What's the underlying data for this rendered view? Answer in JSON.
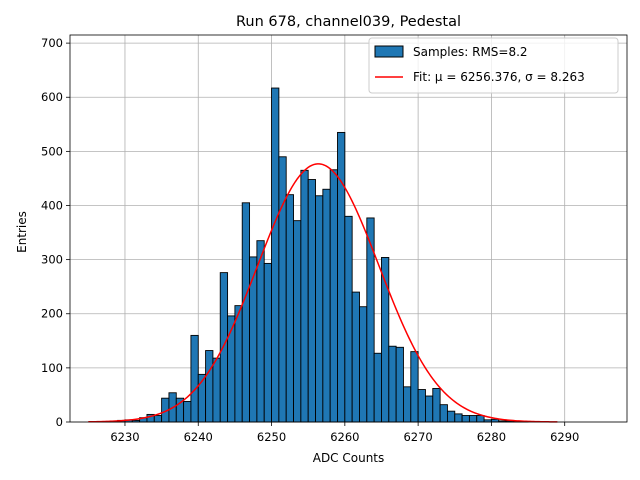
{
  "chart_data": {
    "type": "histogram",
    "title": "Run 678, channel039, Pedestal",
    "xlabel": "ADC Counts",
    "ylabel": "Entries",
    "xlim": [
      6222.5,
      6298.5
    ],
    "ylim": [
      0,
      715
    ],
    "xticks": [
      6230,
      6240,
      6250,
      6260,
      6270,
      6280,
      6290
    ],
    "yticks": [
      0,
      100,
      200,
      300,
      400,
      500,
      600,
      700
    ],
    "grid": true,
    "legend_position": "top-right",
    "bin_width": 1,
    "bin_start": 6226,
    "bar_color": "#1f77b4",
    "edge_color": "#000000",
    "fit_color": "#ff0000",
    "legend": {
      "samples_label": "Samples: RMS=8.2",
      "fit_label": "Fit: μ = 6256.376, σ = 8.263"
    },
    "counts": [
      1,
      1,
      2,
      3,
      4,
      3,
      8,
      14,
      12,
      44,
      54,
      44,
      38,
      160,
      88,
      132,
      118,
      276,
      196,
      215,
      405,
      305,
      335,
      293,
      617,
      490,
      420,
      372,
      465,
      448,
      418,
      430,
      466,
      535,
      380,
      240,
      213,
      377,
      127,
      304,
      140,
      138,
      65,
      130,
      60,
      48,
      62,
      32,
      20,
      15,
      12,
      12,
      12,
      4,
      5,
      2,
      2,
      1,
      1
    ],
    "fit": {
      "mu": 6256.376,
      "sigma": 8.263,
      "amplitude": 477,
      "x_range": [
        6225,
        6289
      ]
    }
  }
}
